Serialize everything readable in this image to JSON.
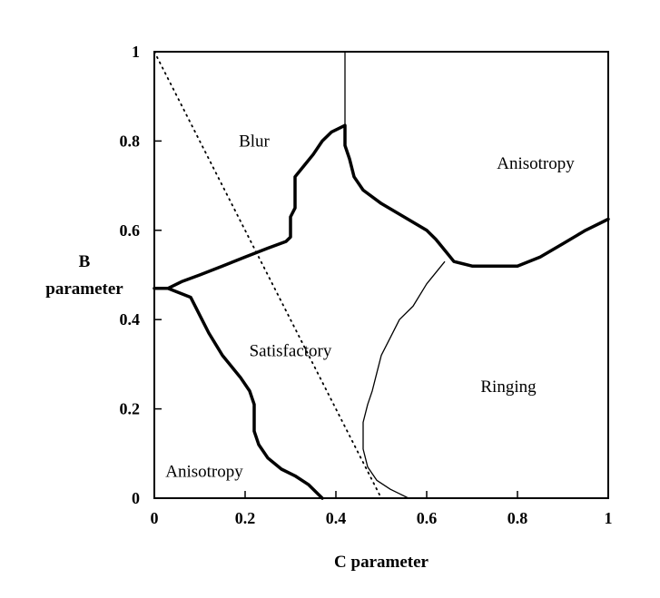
{
  "chart_data": {
    "type": "line",
    "xlabel": "C parameter",
    "ylabel_lines": [
      "B",
      "parameter"
    ],
    "xlim": [
      0,
      1
    ],
    "ylim": [
      0,
      1
    ],
    "xticks": [
      "0",
      "0.2",
      "0.4",
      "0.6",
      "0.8",
      "1"
    ],
    "xtick_values": [
      0,
      0.2,
      0.4,
      0.6,
      0.8,
      1
    ],
    "yticks": [
      "0",
      "0.2",
      "0.4",
      "0.6",
      "0.8",
      "1"
    ],
    "ytick_values": [
      0,
      0.2,
      0.4,
      0.6,
      0.8,
      1
    ],
    "grid": false,
    "region_labels": [
      {
        "text": "Blur",
        "x": 0.22,
        "y": 0.8
      },
      {
        "text": "Anisotropy",
        "x": 0.84,
        "y": 0.75
      },
      {
        "text": "Satisfactory",
        "x": 0.3,
        "y": 0.33
      },
      {
        "text": "Ringing",
        "x": 0.78,
        "y": 0.25
      },
      {
        "text": "Anisotropy",
        "x": 0.11,
        "y": 0.06
      }
    ],
    "series": [
      {
        "style": "thick",
        "x": [
          0,
          0.03,
          0.06,
          0.1,
          0.15,
          0.2,
          0.25,
          0.29,
          0.3,
          0.3,
          0.31,
          0.31,
          0.33,
          0.35,
          0.37,
          0.39,
          0.42,
          0.42,
          0.43,
          0.44,
          0.46,
          0.5,
          0.55,
          0.6,
          0.62,
          0.64,
          0.66,
          0.7,
          0.75,
          0.8,
          0.85,
          0.9,
          0.95,
          1.0
        ],
        "y": [
          0.47,
          0.47,
          0.485,
          0.5,
          0.52,
          0.54,
          0.56,
          0.575,
          0.585,
          0.63,
          0.65,
          0.72,
          0.745,
          0.77,
          0.8,
          0.82,
          0.835,
          0.79,
          0.76,
          0.72,
          0.69,
          0.66,
          0.63,
          0.6,
          0.58,
          0.555,
          0.53,
          0.52,
          0.52,
          0.52,
          0.54,
          0.57,
          0.6,
          0.625
        ]
      },
      {
        "style": "thick",
        "x": [
          0.03,
          0.08,
          0.1,
          0.12,
          0.15,
          0.19,
          0.21,
          0.22,
          0.22,
          0.23,
          0.25,
          0.28,
          0.31,
          0.34,
          0.36,
          0.37
        ],
        "y": [
          0.47,
          0.45,
          0.41,
          0.37,
          0.32,
          0.27,
          0.24,
          0.21,
          0.15,
          0.12,
          0.09,
          0.065,
          0.05,
          0.03,
          0.01,
          0.0
        ]
      },
      {
        "style": "thin",
        "x": [
          0.64,
          0.6,
          0.57,
          0.54,
          0.52,
          0.5,
          0.49,
          0.48,
          0.47,
          0.46,
          0.46,
          0.47,
          0.49,
          0.52,
          0.54,
          0.56
        ],
        "y": [
          0.53,
          0.48,
          0.43,
          0.4,
          0.36,
          0.32,
          0.28,
          0.24,
          0.21,
          0.17,
          0.11,
          0.07,
          0.04,
          0.02,
          0.01,
          0.0
        ]
      },
      {
        "style": "thin",
        "x": [
          0.42,
          0.42
        ],
        "y": [
          0.835,
          1.0
        ]
      },
      {
        "style": "dotted",
        "x": [
          0,
          0.5
        ],
        "y": [
          1.0,
          0.0
        ]
      }
    ]
  }
}
